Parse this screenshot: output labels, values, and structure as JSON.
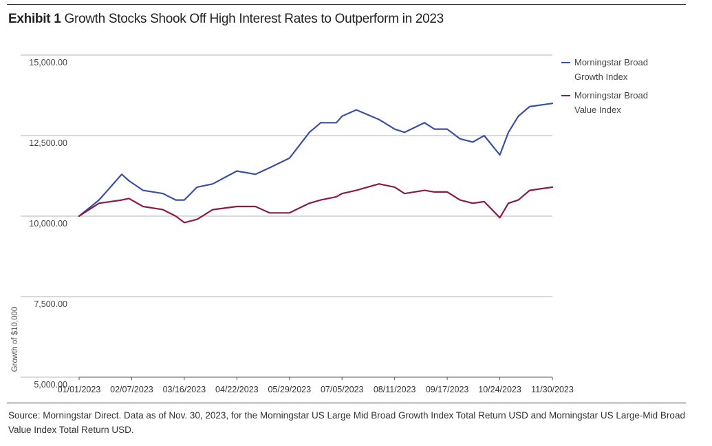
{
  "title": {
    "bold": "Exhibit 1",
    "text": "Growth Stocks Shook Off High Interest Rates to Outperform in 2023"
  },
  "source": "Source: Morningstar Direct. Data as of Nov. 30, 2023, for the Morningstar US Large Mid Broad Growth Index Total Return USD and Morningstar US Large-Mid Broad Value Index Total Return USD.",
  "colors": {
    "growth": "#3b4fa3",
    "value": "#8b1a4b",
    "grid": "#b5b5b5",
    "axis": "#555555"
  },
  "chart_data": {
    "type": "line",
    "title": "Growth Stocks Shook Off High Interest Rates to Outperform in 2023",
    "xlabel": "",
    "ylabel": "Growth of $10,000",
    "ylim": [
      5000,
      15000
    ],
    "grid": true,
    "legend_position": "top-right",
    "y_ticks": [
      "15,000.00",
      "12,500.00",
      "10,000.00",
      "7,500.00",
      "5,000.00"
    ],
    "y_tick_values": [
      15000,
      12500,
      10000,
      7500,
      5000
    ],
    "x_ticks": [
      "01/01/2023",
      "02/07/2023",
      "03/16/2023",
      "04/22/2023",
      "05/29/2023",
      "07/05/2023",
      "08/11/2023",
      "09/17/2023",
      "10/24/2023",
      "11/30/2023"
    ],
    "x_dates": [
      "2023-01-01",
      "2023-01-15",
      "2023-01-31",
      "2023-02-05",
      "2023-02-15",
      "2023-03-01",
      "2023-03-10",
      "2023-03-16",
      "2023-03-25",
      "2023-04-05",
      "2023-04-22",
      "2023-05-05",
      "2023-05-15",
      "2023-05-29",
      "2023-06-12",
      "2023-06-20",
      "2023-07-01",
      "2023-07-05",
      "2023-07-15",
      "2023-07-31",
      "2023-08-11",
      "2023-08-18",
      "2023-09-01",
      "2023-09-08",
      "2023-09-17",
      "2023-09-26",
      "2023-10-05",
      "2023-10-13",
      "2023-10-24",
      "2023-10-30",
      "2023-11-06",
      "2023-11-14",
      "2023-11-30"
    ],
    "series": [
      {
        "name": "Morningstar Broad Growth Index",
        "color": "#3b4fa3",
        "values": [
          10000,
          10500,
          11300,
          11100,
          10800,
          10700,
          10500,
          10500,
          10900,
          11000,
          11400,
          11300,
          11500,
          11800,
          12600,
          12900,
          12900,
          13100,
          13300,
          13000,
          12700,
          12600,
          12900,
          12700,
          12700,
          12400,
          12300,
          12500,
          11900,
          12600,
          13100,
          13400,
          13500
        ]
      },
      {
        "name": "Morningstar Broad Value Index",
        "color": "#8b1a4b",
        "values": [
          10000,
          10400,
          10500,
          10550,
          10300,
          10200,
          10000,
          9800,
          9900,
          10200,
          10300,
          10300,
          10100,
          10100,
          10400,
          10500,
          10600,
          10700,
          10800,
          11000,
          10900,
          10700,
          10800,
          10750,
          10750,
          10500,
          10400,
          10450,
          9950,
          10400,
          10500,
          10800,
          10900
        ]
      }
    ]
  }
}
